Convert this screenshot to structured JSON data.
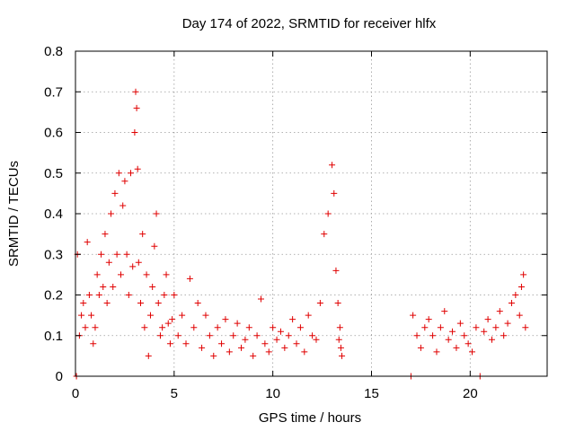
{
  "chart_data": {
    "type": "scatter",
    "title": "Day 174 of 2022, SRMTID for receiver hlfx",
    "xlabel": "GPS time / hours",
    "ylabel": "SRMTID / TECUs",
    "xlim": [
      0,
      23.9
    ],
    "ylim": [
      0,
      0.8
    ],
    "xticks": [
      0,
      5,
      10,
      15,
      20
    ],
    "xtick_labels": [
      "0",
      "5",
      "10",
      "15",
      "20"
    ],
    "yticks": [
      0,
      0.1,
      0.2,
      0.3,
      0.4,
      0.5,
      0.6,
      0.7,
      0.8
    ],
    "ytick_labels": [
      "0",
      "0.1",
      "0.2",
      "0.3",
      "0.4",
      "0.5",
      "0.6",
      "0.7",
      "0.8"
    ],
    "grid": true,
    "marker": "+",
    "series": [
      {
        "name": "SRMTID",
        "color": "#e00000",
        "x": [
          0.05,
          0.1,
          0.2,
          0.3,
          0.4,
          0.5,
          0.6,
          0.7,
          0.8,
          0.9,
          1.0,
          1.1,
          1.2,
          1.3,
          1.4,
          1.5,
          1.6,
          1.7,
          1.8,
          1.9,
          2.0,
          2.1,
          2.2,
          2.3,
          2.4,
          2.5,
          2.6,
          2.7,
          2.8,
          2.9,
          3.0,
          3.05,
          3.1,
          3.15,
          3.2,
          3.3,
          3.4,
          3.5,
          3.6,
          3.7,
          3.8,
          3.9,
          4.0,
          4.1,
          4.2,
          4.3,
          4.4,
          4.5,
          4.6,
          4.7,
          4.8,
          4.9,
          5.0,
          5.2,
          5.4,
          5.6,
          5.8,
          6.0,
          6.2,
          6.4,
          6.6,
          6.8,
          7.0,
          7.2,
          7.4,
          7.6,
          7.8,
          8.0,
          8.2,
          8.4,
          8.6,
          8.8,
          9.0,
          9.2,
          9.4,
          9.6,
          9.8,
          10.0,
          10.2,
          10.4,
          10.6,
          10.8,
          11.0,
          11.2,
          11.4,
          11.6,
          11.8,
          12.0,
          12.2,
          12.4,
          12.6,
          12.8,
          13.0,
          13.1,
          13.2,
          13.3,
          13.35,
          13.4,
          13.45,
          13.5,
          17.0,
          17.1,
          17.3,
          17.5,
          17.7,
          17.9,
          18.1,
          18.3,
          18.5,
          18.7,
          18.9,
          19.1,
          19.3,
          19.5,
          19.7,
          19.9,
          20.1,
          20.3,
          20.5,
          20.7,
          20.9,
          21.1,
          21.3,
          21.5,
          21.7,
          21.9,
          22.1,
          22.3,
          22.5,
          22.6,
          22.7,
          22.8
        ],
        "y": [
          0.0,
          0.3,
          0.1,
          0.15,
          0.18,
          0.12,
          0.33,
          0.2,
          0.15,
          0.08,
          0.12,
          0.25,
          0.2,
          0.3,
          0.22,
          0.35,
          0.18,
          0.28,
          0.4,
          0.22,
          0.45,
          0.3,
          0.5,
          0.25,
          0.42,
          0.48,
          0.3,
          0.2,
          0.5,
          0.27,
          0.6,
          0.7,
          0.66,
          0.51,
          0.28,
          0.18,
          0.35,
          0.12,
          0.25,
          0.05,
          0.15,
          0.22,
          0.32,
          0.4,
          0.18,
          0.1,
          0.12,
          0.2,
          0.25,
          0.13,
          0.08,
          0.14,
          0.2,
          0.1,
          0.15,
          0.08,
          0.24,
          0.12,
          0.18,
          0.07,
          0.15,
          0.1,
          0.05,
          0.12,
          0.08,
          0.14,
          0.06,
          0.1,
          0.13,
          0.07,
          0.09,
          0.12,
          0.05,
          0.1,
          0.19,
          0.08,
          0.06,
          0.12,
          0.09,
          0.11,
          0.07,
          0.1,
          0.14,
          0.08,
          0.12,
          0.06,
          0.15,
          0.1,
          0.09,
          0.18,
          0.35,
          0.4,
          0.52,
          0.45,
          0.26,
          0.18,
          0.09,
          0.12,
          0.07,
          0.05,
          0.0,
          0.15,
          0.1,
          0.07,
          0.12,
          0.14,
          0.1,
          0.06,
          0.12,
          0.16,
          0.09,
          0.11,
          0.07,
          0.13,
          0.1,
          0.08,
          0.06,
          0.12,
          0.0,
          0.11,
          0.14,
          0.09,
          0.12,
          0.16,
          0.1,
          0.13,
          0.18,
          0.2,
          0.15,
          0.22,
          0.25,
          0.12
        ]
      }
    ]
  }
}
